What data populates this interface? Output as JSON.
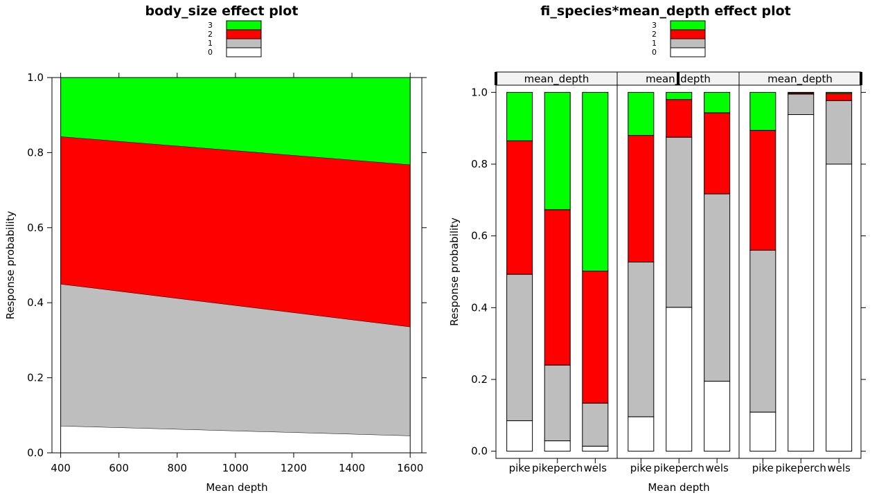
{
  "colors": {
    "0": "#ffffff",
    "1": "#bebebe",
    "2": "#ff0000",
    "3": "#00ff00"
  },
  "chart_data": [
    {
      "type": "area",
      "title": "body_size effect plot",
      "xlabel": "Mean depth",
      "ylabel": "Response probability",
      "xlim": [
        370,
        1640
      ],
      "ylim": [
        0,
        1
      ],
      "x_ticks": [
        "400",
        "600",
        "800",
        "1000",
        "1200",
        "1400",
        "1600"
      ],
      "y_ticks": [
        "0.0",
        "0.2",
        "0.4",
        "0.6",
        "0.8",
        "1.0"
      ],
      "legend": {
        "entries": [
          "3",
          "2",
          "1",
          "0"
        ],
        "placement": "top"
      },
      "x": [
        400,
        1600
      ],
      "series": [
        {
          "name": "0",
          "values": [
            0.072,
            0.046
          ]
        },
        {
          "name": "1",
          "values": [
            0.378,
            0.29
          ]
        },
        {
          "name": "2",
          "values": [
            0.393,
            0.432
          ]
        },
        {
          "name": "3",
          "values": [
            0.157,
            0.232
          ]
        }
      ]
    },
    {
      "type": "bar",
      "stacked": true,
      "title": "fi_species*mean_depth effect plot",
      "xlabel": "Mean depth",
      "ylabel": "Response probability",
      "ylim": [
        -0.02,
        1.02
      ],
      "y_ticks": [
        "0.0",
        "0.2",
        "0.4",
        "0.6",
        "0.8",
        "1.0"
      ],
      "legend": {
        "entries": [
          "3",
          "2",
          "1",
          "0"
        ],
        "placement": "top"
      },
      "categories": [
        "pike",
        "pikeperch",
        "wels"
      ],
      "panels": [
        {
          "strip": "mean_depth",
          "stacks": [
            [
              0.085,
              0.408,
              0.372,
              0.135
            ],
            [
              0.029,
              0.211,
              0.433,
              0.327
            ],
            [
              0.014,
              0.12,
              0.368,
              0.498
            ]
          ]
        },
        {
          "strip": "mean_depth",
          "stacks": [
            [
              0.096,
              0.431,
              0.353,
              0.12
            ],
            [
              0.401,
              0.474,
              0.105,
              0.02
            ],
            [
              0.195,
              0.522,
              0.226,
              0.057
            ]
          ]
        },
        {
          "strip": "mean_depth",
          "stacks": [
            [
              0.109,
              0.451,
              0.334,
              0.106
            ],
            [
              0.938,
              0.057,
              0.003,
              0.002
            ],
            [
              0.8,
              0.177,
              0.02,
              0.003
            ]
          ]
        }
      ]
    }
  ]
}
